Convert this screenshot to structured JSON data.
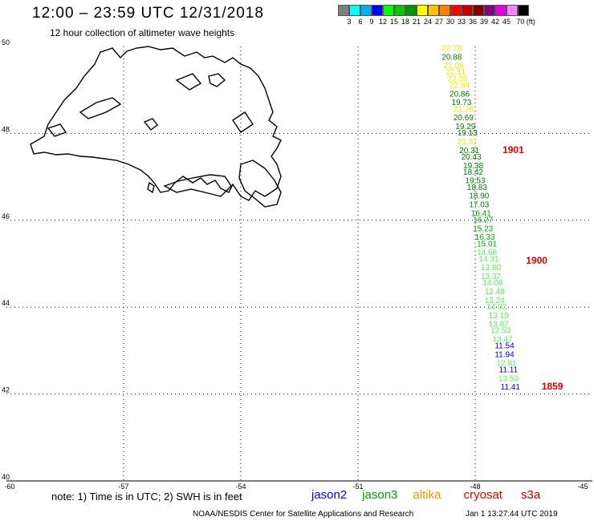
{
  "header": {
    "title": "12:00 – 23:59 UTC 12/31/2018",
    "subtitle": "12 hour collection of altimeter wave heights"
  },
  "scale": {
    "colors": [
      "#7f7f7f",
      "#00ffff",
      "#00b0f0",
      "#0000ff",
      "#00ff00",
      "#00c800",
      "#009600",
      "#ffff00",
      "#ffc000",
      "#ff8000",
      "#ff0000",
      "#c00000",
      "#800000",
      "#800080",
      "#e000e0",
      "#ff80ff",
      "#000000"
    ],
    "labels": [
      "3",
      "6",
      "9",
      "12",
      "15",
      "18",
      "21",
      "24",
      "27",
      "30",
      "33",
      "36",
      "39",
      "42",
      "45",
      "70 (ft)"
    ]
  },
  "axes": {
    "lat_labels": [
      "50",
      "48",
      "46",
      "44",
      "42",
      "40"
    ],
    "lon_labels": [
      "-60",
      "-57",
      "-54",
      "-51",
      "-48",
      "-45"
    ]
  },
  "map_data": {
    "projection": "equirectangular",
    "lon_range": [
      -60,
      -45
    ],
    "lat_range": [
      40,
      50
    ],
    "observations": [
      {
        "v": "22.78",
        "c": "#e8e800",
        "lon": -48.6,
        "lat": 49.9
      },
      {
        "v": "20.88",
        "c": "#007a00",
        "lon": -48.6,
        "lat": 49.7
      },
      {
        "v": "21.08",
        "c": "#e8e800",
        "lon": -48.55,
        "lat": 49.5
      },
      {
        "v": "22.51",
        "c": "#e8e800",
        "lon": -48.5,
        "lat": 49.35
      },
      {
        "v": "22.86",
        "c": "#e8e800",
        "lon": -48.45,
        "lat": 49.2
      },
      {
        "v": "22.84",
        "c": "#e8e800",
        "lon": -48.4,
        "lat": 49.05
      },
      {
        "v": "20.86",
        "c": "#007a00",
        "lon": -48.4,
        "lat": 48.85
      },
      {
        "v": "19.73",
        "c": "#007a00",
        "lon": -48.35,
        "lat": 48.65
      },
      {
        "v": "21.28",
        "c": "#e8e800",
        "lon": -48.3,
        "lat": 48.5
      },
      {
        "v": "20.69",
        "c": "#007a00",
        "lon": -48.3,
        "lat": 48.3
      },
      {
        "v": "19.29",
        "c": "#007a00",
        "lon": -48.25,
        "lat": 48.1
      },
      {
        "v": "19.13",
        "c": "#007a00",
        "lon": -48.2,
        "lat": 47.95
      },
      {
        "v": "21.37",
        "c": "#e8e800",
        "lon": -48.2,
        "lat": 47.75
      },
      {
        "v": "20.31",
        "c": "#007a00",
        "lon": -48.15,
        "lat": 47.55
      },
      {
        "v": "20.43",
        "c": "#007a00",
        "lon": -48.1,
        "lat": 47.4
      },
      {
        "v": "19.38",
        "c": "#007a00",
        "lon": -48.05,
        "lat": 47.2
      },
      {
        "v": "18.42",
        "c": "#007a00",
        "lon": -48.05,
        "lat": 47.05
      },
      {
        "v": "19.53",
        "c": "#007a00",
        "lon": -48.0,
        "lat": 46.85
      },
      {
        "v": "18.83",
        "c": "#007a00",
        "lon": -47.95,
        "lat": 46.7
      },
      {
        "v": "18.90",
        "c": "#007a00",
        "lon": -47.9,
        "lat": 46.5
      },
      {
        "v": "17.03",
        "c": "#007a00",
        "lon": -47.9,
        "lat": 46.3
      },
      {
        "v": "16.41",
        "c": "#00a000",
        "lon": -47.85,
        "lat": 46.1
      },
      {
        "v": "16.27",
        "c": "#00a000",
        "lon": -47.8,
        "lat": 45.95
      },
      {
        "v": "15.23",
        "c": "#00a000",
        "lon": -47.8,
        "lat": 45.75
      },
      {
        "v": "16.33",
        "c": "#00a000",
        "lon": -47.75,
        "lat": 45.55
      },
      {
        "v": "15.01",
        "c": "#00a000",
        "lon": -47.7,
        "lat": 45.4
      },
      {
        "v": "14.68",
        "c": "#55ee55",
        "lon": -47.7,
        "lat": 45.2
      },
      {
        "v": "14.31",
        "c": "#55ee55",
        "lon": -47.65,
        "lat": 45.05
      },
      {
        "v": "13.80",
        "c": "#55ee55",
        "lon": -47.6,
        "lat": 44.85
      },
      {
        "v": "13.37",
        "c": "#55ee55",
        "lon": -47.6,
        "lat": 44.65
      },
      {
        "v": "14.08",
        "c": "#55ee55",
        "lon": -47.55,
        "lat": 44.5
      },
      {
        "v": "12.48",
        "c": "#55ee55",
        "lon": -47.5,
        "lat": 44.3
      },
      {
        "v": "13.24",
        "c": "#55ee55",
        "lon": -47.5,
        "lat": 44.1
      },
      {
        "v": "14.02",
        "c": "#55ee55",
        "lon": -47.45,
        "lat": 43.95
      },
      {
        "v": "13.19",
        "c": "#55ee55",
        "lon": -47.4,
        "lat": 43.75
      },
      {
        "v": "13.87",
        "c": "#55ee55",
        "lon": -47.4,
        "lat": 43.55
      },
      {
        "v": "12.53",
        "c": "#55ee55",
        "lon": -47.35,
        "lat": 43.4
      },
      {
        "v": "13.47",
        "c": "#55ee55",
        "lon": -47.3,
        "lat": 43.2
      },
      {
        "v": "11.54",
        "c": "#0000d0",
        "lon": -47.25,
        "lat": 43.05
      },
      {
        "v": "11.94",
        "c": "#0000d0",
        "lon": -47.25,
        "lat": 42.85
      },
      {
        "v": "12.81",
        "c": "#55ee55",
        "lon": -47.2,
        "lat": 42.65
      },
      {
        "v": "11.11",
        "c": "#0000d0",
        "lon": -47.15,
        "lat": 42.5
      },
      {
        "v": "13.53",
        "c": "#55ee55",
        "lon": -47.15,
        "lat": 42.3
      },
      {
        "v": "11.41",
        "c": "#0000d0",
        "lon": -47.1,
        "lat": 42.1
      }
    ],
    "sat_ids": [
      {
        "v": "1901",
        "lon": -47.3,
        "lat": 47.55
      },
      {
        "v": "1900",
        "lon": -46.7,
        "lat": 45.0
      },
      {
        "v": "1859",
        "lon": -46.3,
        "lat": 42.1
      }
    ]
  },
  "note": "note: 1) Time is in UTC; 2) SWH is in feet",
  "legend": [
    {
      "label": "jason2",
      "color": "#0000e0"
    },
    {
      "label": "jason3",
      "color": "#00a000"
    },
    {
      "label": "altika",
      "color": "#ff9000"
    },
    {
      "label": "cryosat",
      "color": "#e00000"
    },
    {
      "label": "s3a",
      "color": "#c00000"
    }
  ],
  "footer": {
    "source": "NOAA/NESDIS Center for Satellite Applications and Research",
    "time": "Jan  1 13:27:44 UTC 2019"
  }
}
